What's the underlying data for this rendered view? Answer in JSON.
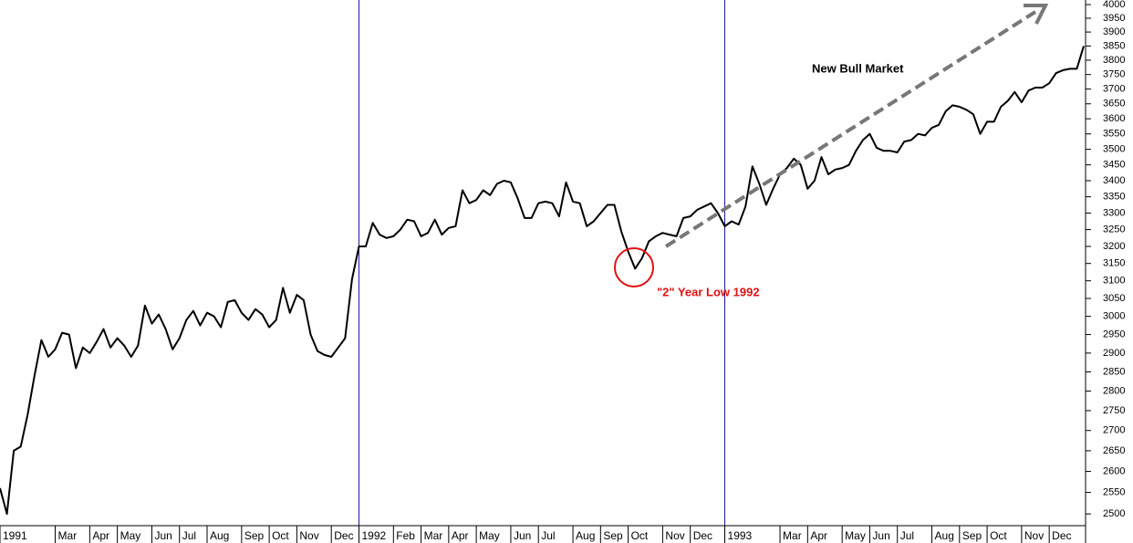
{
  "chart_data": {
    "type": "line",
    "annotations": [
      "New Bull Market",
      "\"2\" Year Low 1992"
    ],
    "log_scale": true,
    "color": "#000000",
    "year_line_color": "#1a1a9c",
    "categories": [
      "1991",
      null,
      null,
      null,
      null,
      null,
      null,
      null,
      "Mar",
      null,
      null,
      null,
      null,
      "Apr",
      null,
      null,
      null,
      "May",
      null,
      null,
      null,
      null,
      "Jun",
      null,
      null,
      null,
      "Jul",
      null,
      null,
      null,
      "Aug",
      null,
      null,
      null,
      null,
      "Sep",
      null,
      null,
      null,
      "Oct",
      null,
      null,
      null,
      "Nov",
      null,
      null,
      null,
      null,
      "Dec",
      null,
      null,
      null,
      "1992",
      null,
      null,
      null,
      null,
      "Feb",
      null,
      null,
      null,
      "Mar",
      null,
      null,
      null,
      "Apr",
      null,
      null,
      null,
      "May",
      null,
      null,
      null,
      null,
      "Jun",
      null,
      null,
      null,
      "Jul",
      null,
      null,
      null,
      null,
      "Aug",
      null,
      null,
      null,
      "Sep",
      null,
      null,
      null,
      "Oct",
      null,
      null,
      null,
      null,
      "Nov",
      null,
      null,
      null,
      "Dec",
      null,
      null,
      null,
      null,
      "1993",
      null,
      null,
      null,
      null,
      null,
      null,
      null,
      "Mar",
      null,
      null,
      null,
      "Apr",
      null,
      null,
      null,
      null,
      "May",
      null,
      null,
      null,
      "Jun",
      null,
      null,
      null,
      "Jul",
      null,
      null,
      null,
      null,
      "Aug",
      null,
      null,
      null,
      "Sep",
      null,
      null,
      null,
      "Oct",
      null,
      null,
      null,
      null,
      "Nov",
      null,
      null,
      null,
      "Dec",
      null,
      null,
      null,
      null,
      null
    ],
    "values": [
      2560,
      2500,
      2650,
      2660,
      2740,
      2840,
      2935,
      2890,
      2910,
      2955,
      2950,
      2860,
      2915,
      2900,
      2930,
      2965,
      2915,
      2940,
      2920,
      2890,
      2920,
      3030,
      2980,
      3005,
      2965,
      2910,
      2940,
      2990,
      3015,
      2975,
      3010,
      3000,
      2970,
      3040,
      3045,
      3010,
      2990,
      3020,
      3005,
      2970,
      2990,
      3080,
      3010,
      3060,
      3045,
      2950,
      2905,
      2895,
      2890,
      2915,
      2940,
      3105,
      3200,
      3200,
      3270,
      3235,
      3225,
      3230,
      3250,
      3280,
      3275,
      3230,
      3240,
      3280,
      3235,
      3255,
      3260,
      3370,
      3330,
      3340,
      3370,
      3355,
      3390,
      3400,
      3395,
      3345,
      3285,
      3285,
      3330,
      3335,
      3330,
      3290,
      3395,
      3335,
      3330,
      3260,
      3275,
      3300,
      3325,
      3325,
      3245,
      3185,
      3135,
      3165,
      3215,
      3230,
      3240,
      3235,
      3230,
      3285,
      3290,
      3310,
      3320,
      3330,
      3300,
      3260,
      3275,
      3265,
      3320,
      3445,
      3390,
      3325,
      3375,
      3420,
      3440,
      3470,
      3450,
      3375,
      3400,
      3475,
      3420,
      3435,
      3440,
      3450,
      3495,
      3530,
      3550,
      3505,
      3495,
      3495,
      3490,
      3525,
      3530,
      3550,
      3545,
      3570,
      3580,
      3625,
      3645,
      3640,
      3630,
      3615,
      3550,
      3590,
      3590,
      3640,
      3660,
      3690,
      3655,
      3695,
      3705,
      3705,
      3720,
      3755,
      3765,
      3770,
      3770,
      3850
    ],
    "ylim": [
      2473,
      4017
    ],
    "yticks": [
      2500,
      2550,
      2600,
      2650,
      2700,
      2750,
      2800,
      2850,
      2900,
      2950,
      3000,
      3050,
      3100,
      3150,
      3200,
      3250,
      3300,
      3350,
      3400,
      3450,
      3500,
      3550,
      3600,
      3650,
      3700,
      3750,
      3800,
      3850,
      3900,
      3950,
      4000
    ]
  }
}
